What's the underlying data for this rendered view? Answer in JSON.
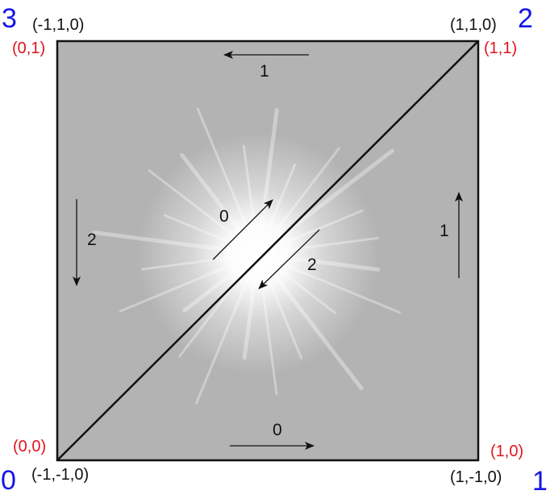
{
  "colors": {
    "quad_fill": "#b3b3b3",
    "outline": "#111111",
    "uv_label": "#e0141e",
    "vertex_index": "#1515e6"
  },
  "vertices": [
    {
      "index": "0",
      "position": "(-1,-1,0)",
      "uv": "(0,0)"
    },
    {
      "index": "1",
      "position": "(1,-1,0)",
      "uv": "(1,0)"
    },
    {
      "index": "2",
      "position": "(1,1,0)",
      "uv": "(1,1)"
    },
    {
      "index": "3",
      "position": "(-1,1,0)",
      "uv": "(0,1)"
    }
  ],
  "edge_labels": {
    "bottom": "0",
    "right": "1",
    "top": "1",
    "left": "2",
    "diagonal_up": "0",
    "diagonal_down": "2"
  },
  "icons": {
    "center_glow": "starburst-glow-icon"
  }
}
